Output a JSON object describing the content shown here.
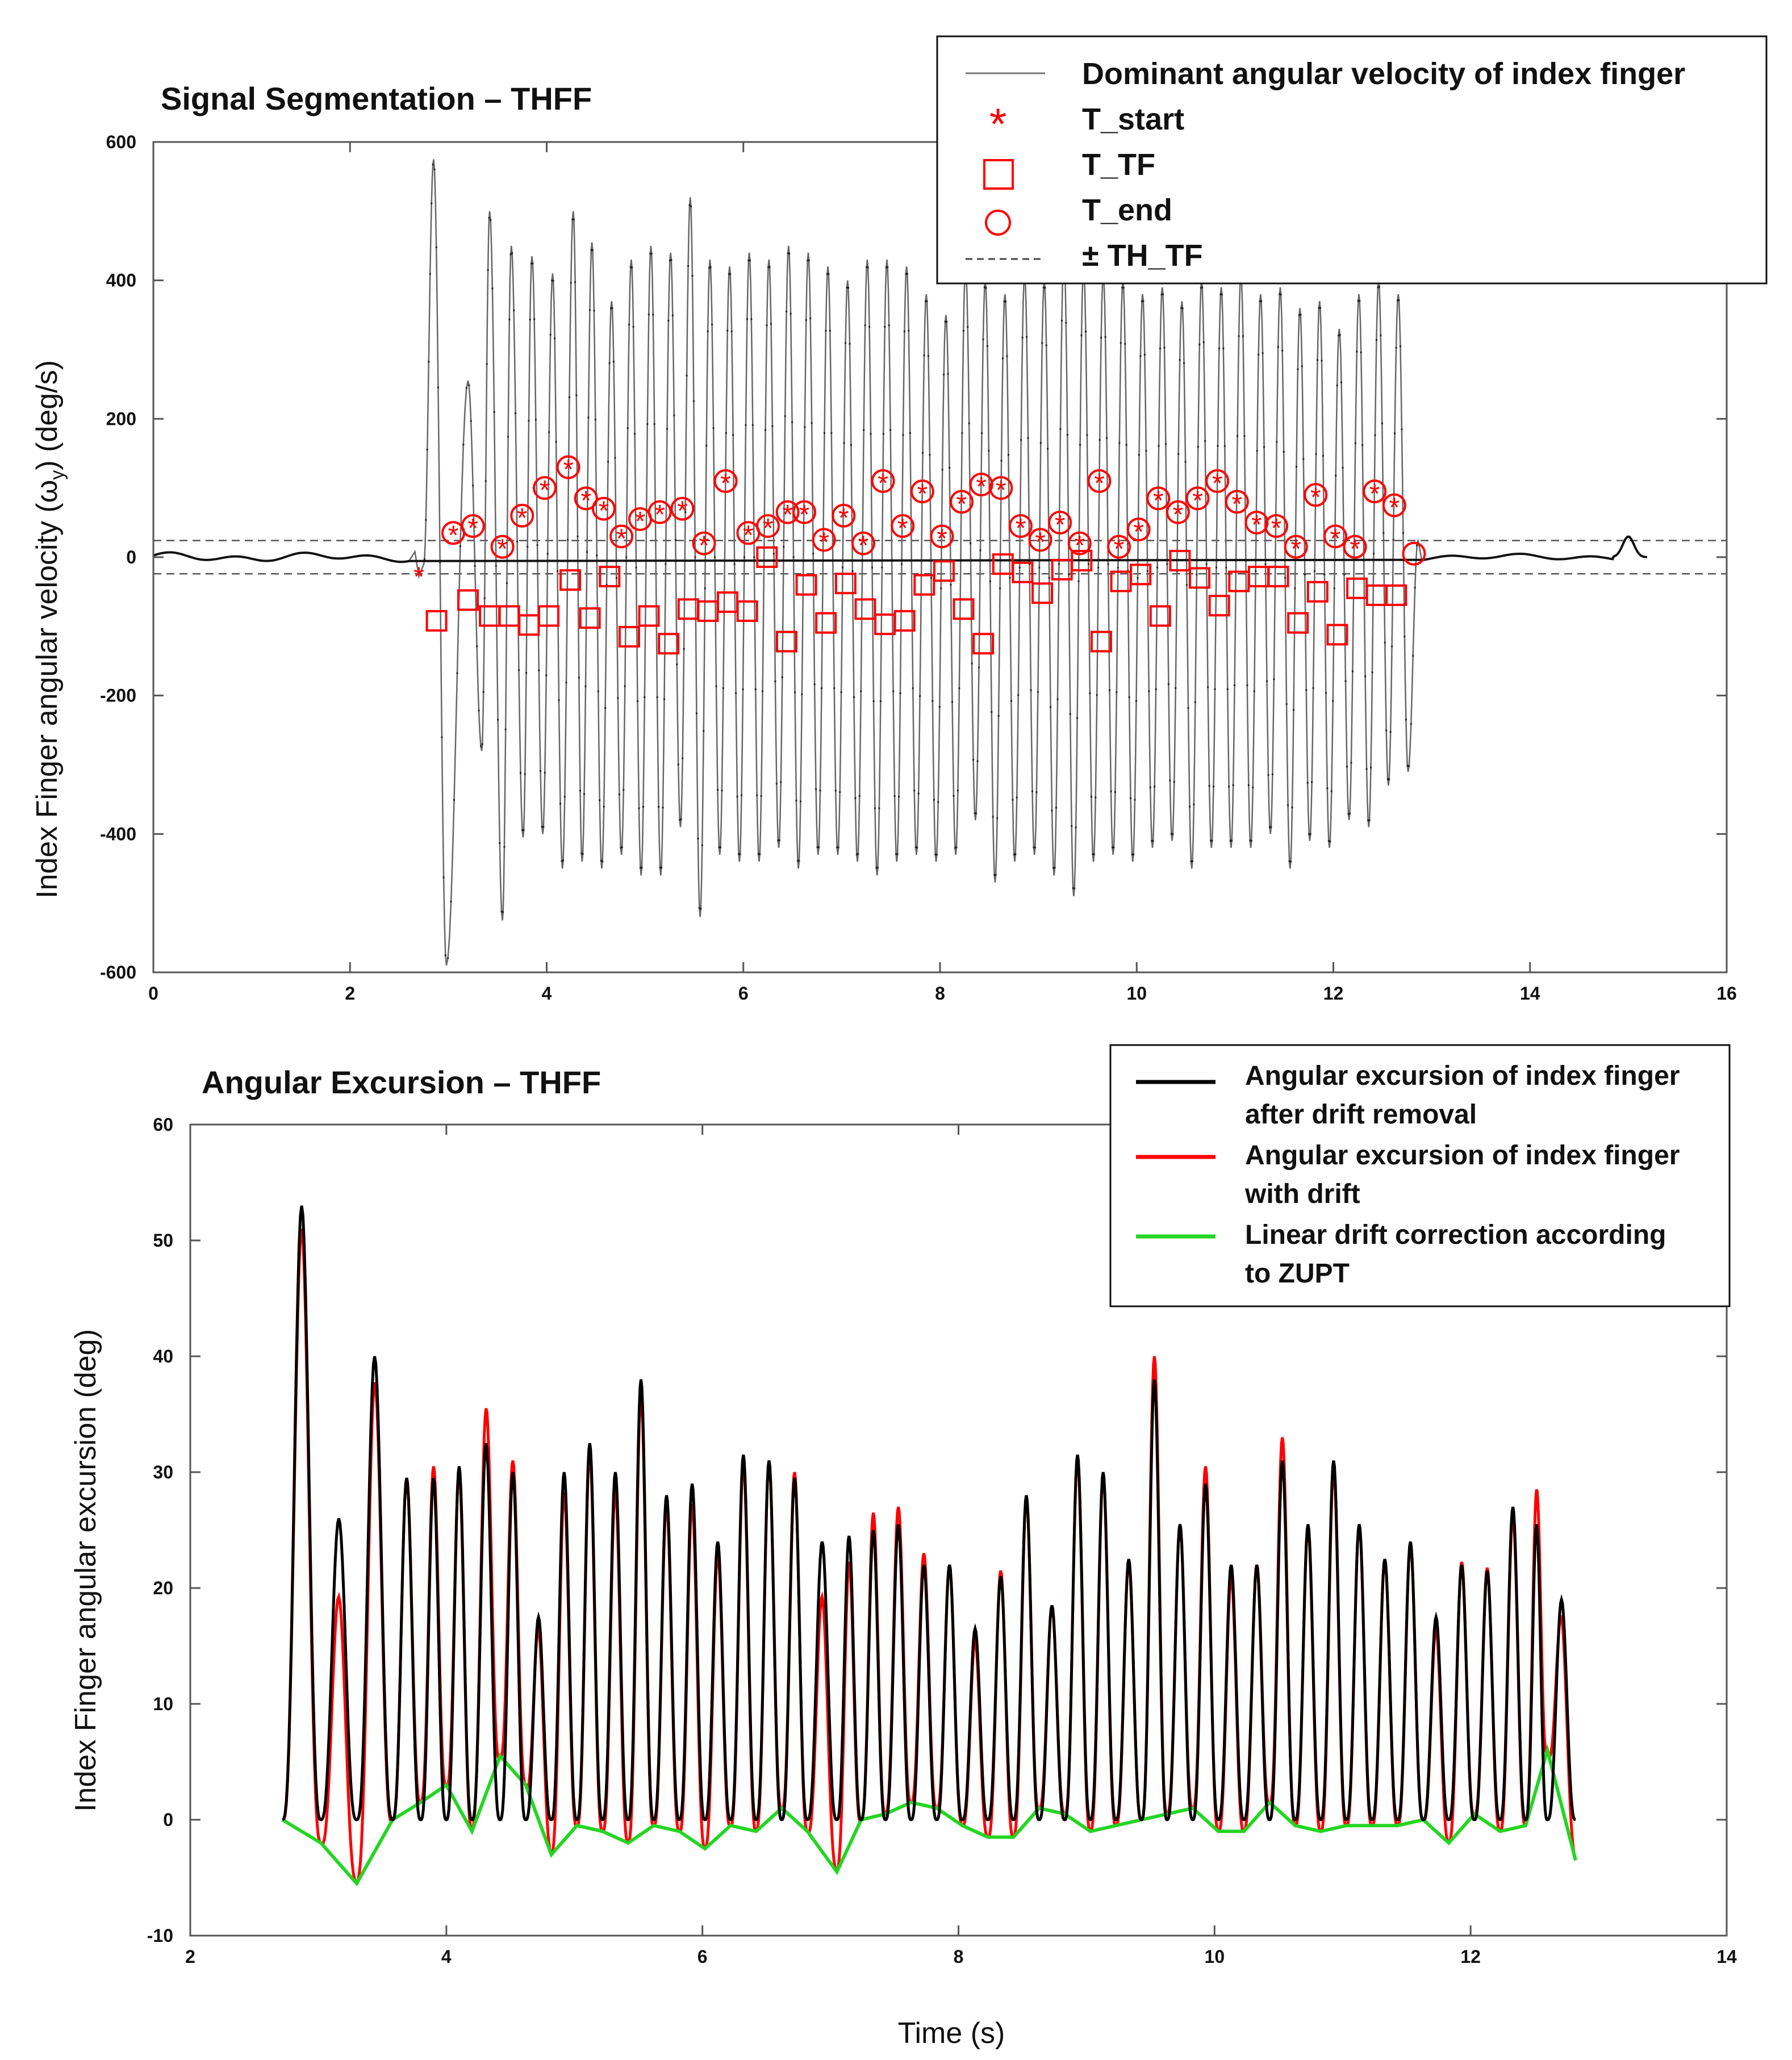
{
  "chart_data": [
    {
      "type": "line",
      "title": "Signal Segmentation – THFF",
      "xlabel": "",
      "ylabel": "Index Finger angular velocity (ω",
      "ylabel_sub": "y",
      "ylabel_tail": ") (deg/s)",
      "xlim": [
        0,
        16
      ],
      "ylim": [
        -600,
        600
      ],
      "xticks": [
        0,
        2,
        4,
        6,
        8,
        10,
        12,
        14,
        16
      ],
      "yticks": [
        600,
        400,
        200,
        0,
        -200,
        -400,
        -600
      ],
      "threshold": 24,
      "legend": {
        "position": "top-right",
        "entries": [
          "Dominant angular velocity of index finger",
          "T_start",
          "T_TF",
          "T_end",
          "± TH_TF"
        ]
      },
      "signal": {
        "name": "Dominant angular velocity of index finger",
        "peaks_t": [
          2.85,
          3.2,
          3.42,
          3.64,
          3.85,
          4.06,
          4.27,
          4.46,
          4.66,
          4.86,
          5.06,
          5.26,
          5.46,
          5.66,
          5.86,
          6.06,
          6.26,
          6.46,
          6.66,
          6.86,
          7.06,
          7.26,
          7.46,
          7.66,
          7.86,
          8.06,
          8.26,
          8.46,
          8.66,
          8.86,
          9.06,
          9.26,
          9.46,
          9.66,
          9.86,
          10.06,
          10.26,
          10.46,
          10.66,
          10.86,
          11.06,
          11.26,
          11.46,
          11.66,
          11.86,
          12.06,
          12.26,
          12.46,
          12.66
        ],
        "peaks_v": [
          575,
          255,
          500,
          450,
          435,
          410,
          500,
          455,
          370,
          430,
          450,
          440,
          520,
          430,
          420,
          440,
          430,
          450,
          440,
          420,
          400,
          430,
          430,
          420,
          380,
          350,
          420,
          400,
          380,
          410,
          400,
          440,
          420,
          410,
          400,
          380,
          390,
          370,
          400,
          390,
          410,
          380,
          390,
          360,
          370,
          330,
          380,
          400,
          380
        ],
        "troughs_t": [
          2.98,
          3.34,
          3.55,
          3.76,
          3.96,
          4.16,
          4.36,
          4.56,
          4.76,
          4.96,
          5.16,
          5.36,
          5.56,
          5.76,
          5.96,
          6.16,
          6.36,
          6.56,
          6.76,
          6.96,
          7.16,
          7.36,
          7.56,
          7.76,
          7.96,
          8.16,
          8.36,
          8.56,
          8.76,
          8.96,
          9.16,
          9.36,
          9.56,
          9.76,
          9.96,
          10.16,
          10.36,
          10.56,
          10.76,
          10.96,
          11.16,
          11.36,
          11.56,
          11.76,
          11.96,
          12.16,
          12.36,
          12.56,
          12.76
        ],
        "troughs_v": [
          -590,
          -280,
          -525,
          -405,
          -400,
          -450,
          -440,
          -450,
          -430,
          -460,
          -460,
          -390,
          -520,
          -430,
          -440,
          -440,
          -420,
          -450,
          -430,
          -430,
          -440,
          -460,
          -440,
          -430,
          -440,
          -430,
          -380,
          -470,
          -440,
          -430,
          -460,
          -490,
          -440,
          -430,
          -440,
          -420,
          -410,
          -450,
          -420,
          -420,
          -420,
          -400,
          -450,
          -410,
          -420,
          -380,
          -390,
          -330,
          -310
        ]
      },
      "t_start": {
        "t": [
          2.7,
          3.05,
          3.25,
          3.55,
          3.75,
          3.98,
          4.22,
          4.4,
          4.58,
          4.76,
          4.95,
          5.15,
          5.38,
          5.6,
          5.82,
          6.05,
          6.25,
          6.45,
          6.62,
          6.82,
          7.02,
          7.22,
          7.42,
          7.62,
          7.82,
          8.02,
          8.22,
          8.42,
          8.62,
          8.82,
          9.02,
          9.22,
          9.42,
          9.62,
          9.82,
          10.02,
          10.22,
          10.42,
          10.62,
          10.82,
          11.02,
          11.22,
          11.42,
          11.62,
          11.82,
          12.02,
          12.22,
          12.42,
          12.62
        ],
        "v": [
          -25,
          35,
          45,
          15,
          60,
          100,
          130,
          85,
          70,
          30,
          55,
          65,
          70,
          20,
          110,
          35,
          45,
          65,
          65,
          25,
          60,
          20,
          110,
          45,
          95,
          30,
          80,
          105,
          100,
          45,
          25,
          50,
          20,
          110,
          15,
          40,
          85,
          65,
          85,
          110,
          80,
          50,
          45,
          15,
          90,
          30,
          15,
          95,
          75
        ]
      },
      "t_tf": {
        "t": [
          2.88,
          3.2,
          3.42,
          3.62,
          3.82,
          4.02,
          4.24,
          4.44,
          4.64,
          4.84,
          5.04,
          5.24,
          5.44,
          5.64,
          5.84,
          6.04,
          6.24,
          6.44,
          6.64,
          6.84,
          7.04,
          7.24,
          7.44,
          7.64,
          7.84,
          8.04,
          8.24,
          8.44,
          8.64,
          8.84,
          9.04,
          9.24,
          9.44,
          9.64,
          9.84,
          10.04,
          10.24,
          10.44,
          10.64,
          10.84,
          11.04,
          11.24,
          11.44,
          11.64,
          11.84,
          12.04,
          12.24,
          12.44,
          12.64
        ],
        "v": [
          -92,
          -62,
          -85,
          -85,
          -98,
          -85,
          -33,
          -88,
          -28,
          -115,
          -85,
          -125,
          -75,
          -78,
          -65,
          -78,
          0,
          -122,
          -40,
          -95,
          -38,
          -75,
          -97,
          -92,
          -40,
          -20,
          -75,
          -125,
          -10,
          -22,
          -52,
          -18,
          -5,
          -122,
          -35,
          -25,
          -85,
          -5,
          -30,
          -70,
          -35,
          -28,
          -28,
          -95,
          -50,
          -112,
          -45,
          -55,
          -55
        ]
      },
      "t_end": {
        "t": [
          3.05,
          3.25,
          3.55,
          3.75,
          3.98,
          4.22,
          4.4,
          4.58,
          4.76,
          4.95,
          5.15,
          5.38,
          5.6,
          5.82,
          6.05,
          6.25,
          6.45,
          6.62,
          6.82,
          7.02,
          7.22,
          7.42,
          7.62,
          7.82,
          8.02,
          8.22,
          8.42,
          8.62,
          8.82,
          9.02,
          9.22,
          9.42,
          9.62,
          9.82,
          10.02,
          10.22,
          10.42,
          10.62,
          10.82,
          11.02,
          11.22,
          11.42,
          11.62,
          11.82,
          12.02,
          12.22,
          12.42,
          12.62,
          12.82
        ],
        "v": [
          35,
          45,
          15,
          60,
          100,
          130,
          85,
          70,
          30,
          55,
          65,
          70,
          20,
          110,
          35,
          45,
          65,
          65,
          25,
          60,
          20,
          110,
          45,
          95,
          30,
          80,
          105,
          100,
          45,
          25,
          50,
          20,
          110,
          15,
          40,
          85,
          65,
          85,
          110,
          80,
          50,
          45,
          15,
          90,
          30,
          15,
          95,
          75,
          5
        ]
      }
    },
    {
      "type": "line",
      "title": "Angular Excursion – THFF",
      "xlabel": "Time (s)",
      "ylabel": "Index Finger angular excursion (deg)",
      "xlim": [
        2,
        14
      ],
      "ylim": [
        -10,
        60
      ],
      "xticks": [
        2,
        4,
        6,
        8,
        10,
        12,
        14
      ],
      "yticks": [
        60,
        50,
        40,
        30,
        20,
        10,
        0,
        -10
      ],
      "legend": {
        "position": "top-right",
        "entries": [
          {
            "label_line1": "Angular excursion of index finger",
            "label_line2": "after drift removal",
            "color": "#000000"
          },
          {
            "label_line1": "Angular excursion of index finger",
            "label_line2": "with drift",
            "color": "#ff0000"
          },
          {
            "label_line1": "Linear drift correction according",
            "label_line2": "to ZUPT",
            "color": "#22d622"
          }
        ]
      },
      "breakpoints_t": [
        2.72,
        3.02,
        3.3,
        3.58,
        3.8,
        4.0,
        4.2,
        4.42,
        4.62,
        4.82,
        5.02,
        5.22,
        5.42,
        5.62,
        5.82,
        6.02,
        6.22,
        6.42,
        6.62,
        6.82,
        7.05,
        7.24,
        7.43,
        7.63,
        7.83,
        8.03,
        8.23,
        8.43,
        8.63,
        8.83,
        9.03,
        9.23,
        9.43,
        9.63,
        9.83,
        10.03,
        10.23,
        10.43,
        10.63,
        10.83,
        11.03,
        11.23,
        11.43,
        11.63,
        11.83,
        12.03,
        12.23,
        12.43,
        12.6,
        12.82
      ],
      "peaks_black": [
        53,
        26,
        40,
        29.5,
        29.5,
        30.5,
        32.5,
        30,
        17.5,
        30,
        32.5,
        30,
        38,
        28,
        29,
        24,
        31.5,
        31,
        29.5,
        24,
        24.5,
        25,
        25.5,
        22,
        22,
        16.5,
        21,
        28,
        18.5,
        31.5,
        30,
        22.5,
        38,
        25.5,
        29,
        22,
        22,
        31,
        25.5,
        31,
        25.5,
        22.5,
        24,
        17.5,
        22,
        21.5,
        27,
        25.5,
        19
      ],
      "peaks_red": [
        52,
        23,
        40.5,
        29.5,
        30.5,
        30,
        35.5,
        31,
        16.5,
        30,
        32.5,
        30,
        38,
        28,
        29,
        24.5,
        31.5,
        31,
        30,
        22,
        24.5,
        26.5,
        27,
        23,
        22,
        16.5,
        23,
        28,
        18.5,
        31.5,
        30.5,
        22.5,
        40,
        25.5,
        30.5,
        22,
        22,
        33,
        26,
        31,
        26,
        23,
        24,
        17.5,
        23,
        22,
        27,
        28.5,
        17.5
      ],
      "drift_at_breaks": [
        0,
        -2,
        -5.5,
        0,
        1.5,
        3,
        -1,
        5.5,
        3,
        -3,
        -0.5,
        -1,
        -2,
        -0.5,
        -1,
        -2.5,
        -0.5,
        -1,
        1,
        -1,
        -4.5,
        0,
        0.5,
        1.5,
        1,
        -0.5,
        -1.5,
        -1.5,
        1,
        0.5,
        -1,
        -0.5,
        0,
        0.5,
        1,
        -1,
        -1,
        1.5,
        -0.5,
        -1,
        -0.5,
        -0.5,
        -0.5,
        0,
        -2,
        0.5,
        -1,
        -0.5,
        6,
        -3.5
      ]
    }
  ]
}
